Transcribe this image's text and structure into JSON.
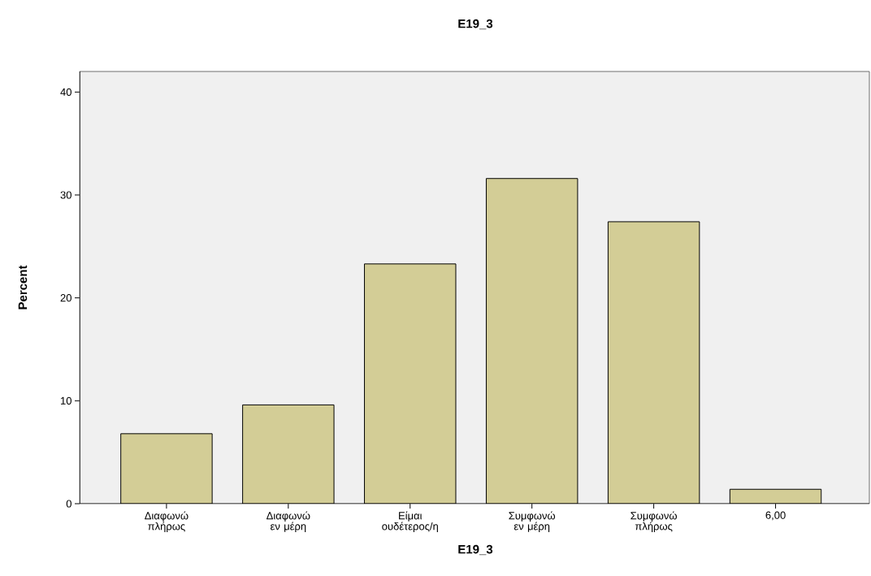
{
  "chart_data": {
    "type": "bar",
    "title": "E19_3",
    "xlabel": "E19_3",
    "ylabel": "Percent",
    "categories": [
      "Διαφωνώ πλήρως",
      "Διαφωνώ εν μέρη",
      "Είμαι ουδέτερος/η",
      "Συμφωνώ εν μέρη",
      "Συμφωνώ πλήρως",
      "6,00"
    ],
    "values": [
      6.8,
      9.6,
      23.3,
      31.6,
      27.4,
      1.4
    ],
    "color": "#d3cd96",
    "ylim": [
      0,
      42
    ],
    "yticks": [
      0,
      10,
      20,
      30,
      40
    ]
  }
}
